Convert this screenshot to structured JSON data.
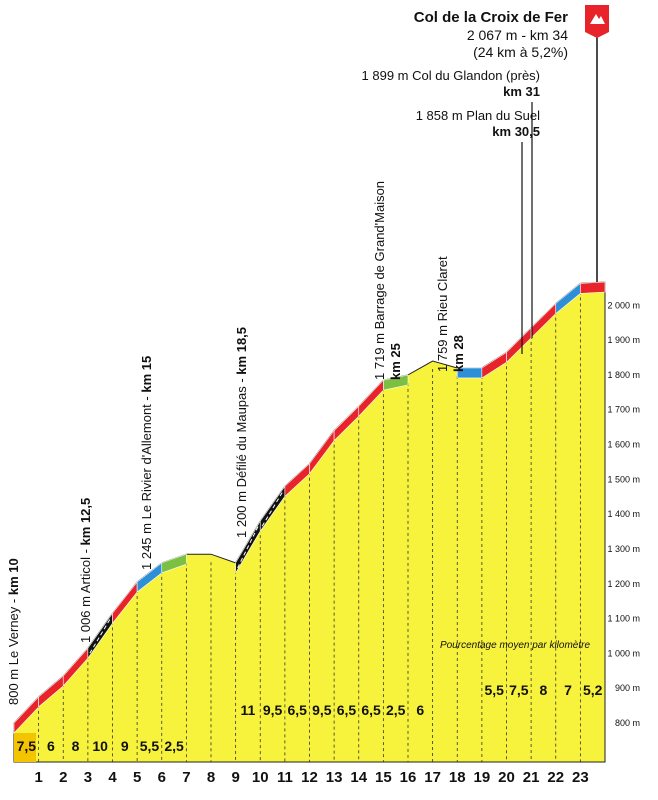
{
  "chart_data": {
    "type": "area",
    "title": "Col de la Croix de Fer",
    "summit": {
      "line1": "2 067 m - km 34",
      "line2": "(24 km à 5,2%)"
    },
    "km_labels": [
      "1",
      "2",
      "3",
      "4",
      "5",
      "6",
      "7",
      "8",
      "9",
      "10",
      "11",
      "12",
      "13",
      "14",
      "15",
      "16",
      "17",
      "18",
      "19",
      "20",
      "21",
      "22",
      "23"
    ],
    "gradients": [
      "7,5",
      "6",
      "8",
      "10",
      "9",
      "5,5",
      "2,5",
      "",
      "",
      "11",
      "9,5",
      "6,5",
      "9,5",
      "6,5",
      "6,5",
      "2,5",
      "6",
      "",
      "",
      "5,5",
      "7,5",
      "8",
      "7",
      "5,2"
    ],
    "y_ticks": [
      "800 m",
      "900 m",
      "1 000 m",
      "1 100 m",
      "1 200 m",
      "1 300 m",
      "1 400 m",
      "1 500 m",
      "1 600 m",
      "1 700 m",
      "1 800 m",
      "1 900 m",
      "2 000 m"
    ],
    "y_values": [
      800,
      900,
      1000,
      1100,
      1200,
      1300,
      1400,
      1500,
      1600,
      1700,
      1800,
      1900,
      2000
    ],
    "ylim": [
      800,
      2067
    ],
    "profile": {
      "x": [
        0,
        1,
        2,
        3,
        4,
        5,
        6,
        7,
        8,
        9,
        10,
        11,
        12,
        13,
        14,
        15,
        16,
        17,
        18,
        19,
        20,
        21,
        22,
        23,
        24
      ],
      "elevation": [
        800,
        875,
        935,
        1015,
        1115,
        1205,
        1260,
        1285,
        1285,
        1260,
        1380,
        1480,
        1545,
        1640,
        1710,
        1785,
        1800,
        1840,
        1820,
        1820,
        1865,
        1935,
        2005,
        2063,
        2067
      ]
    },
    "xaxis_note": "Pourcentage moyen par kilomètre",
    "annotations_vertical": [
      {
        "place": "800 m Le Verney - ",
        "km": "km 10"
      },
      {
        "place": "1 006 m Articol - ",
        "km": "km 12,5"
      },
      {
        "place": "1 245 m Le Rivier d'Allemont - ",
        "km": "km 15"
      },
      {
        "place": "1 200 m Défilé du Maupas - ",
        "km": "km 18,5"
      },
      {
        "place": "1 719 m Barrage de Grand'Maison",
        "km": "km 25"
      },
      {
        "place": "1 759 m Rieu Claret",
        "km": "km 28"
      }
    ],
    "annotations_horizontal": [
      {
        "place": "1 899 m Col du Glandon (près)",
        "km": "km 31"
      },
      {
        "place": "1 858 m Plan du Suel",
        "km": "km 30,5"
      }
    ],
    "colors": {
      "fill": "#f7f23b",
      "red": "#e8232a",
      "black": "#111111",
      "blue": "#2d8fd8",
      "green": "#7bc043",
      "start_block": "#f5c400",
      "flag": "#e8232a"
    },
    "legend": "none",
    "grid": false
  }
}
